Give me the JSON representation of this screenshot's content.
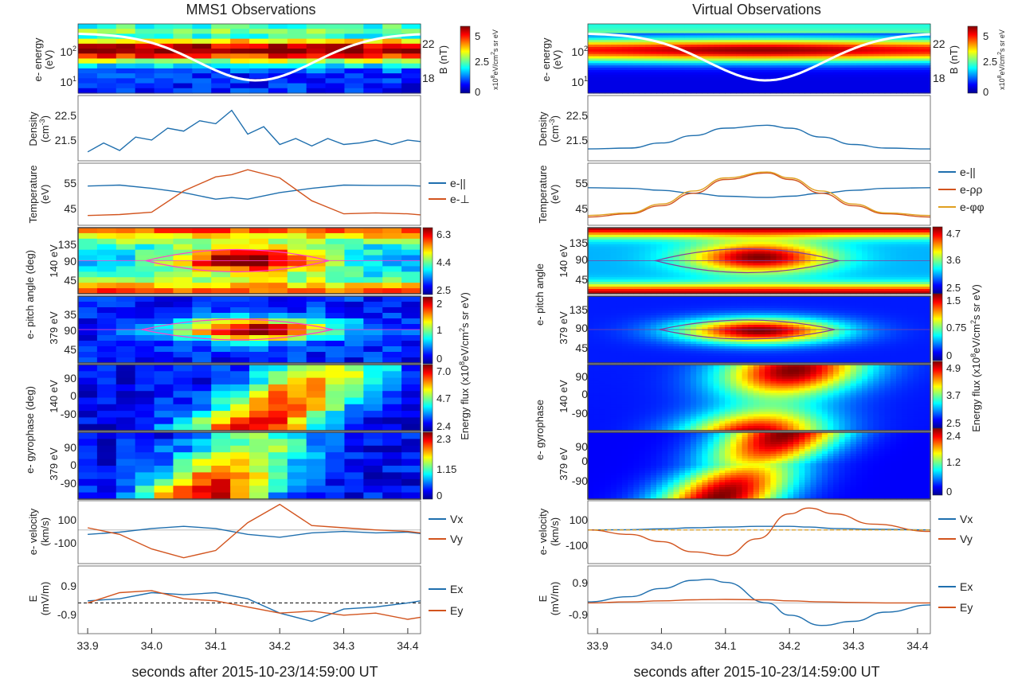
{
  "titles": {
    "left": "MMS1 Observations",
    "right": "Virtual Observations"
  },
  "xaxis": {
    "ticks": [
      "33.9",
      "34.0",
      "34.1",
      "34.2",
      "34.3",
      "34.4"
    ],
    "tick_values": [
      33.9,
      34.0,
      34.1,
      34.2,
      34.3,
      34.4
    ],
    "range": [
      33.885,
      34.42
    ],
    "label": "seconds after 2015-10-23/14:59:00 UT"
  },
  "labels": {
    "energy_l1": "e- energy",
    "energy_l2": "(eV)",
    "e_tick_hi": "10",
    "e_tick_hi_exp": "2",
    "e_tick_lo": "10",
    "e_tick_lo_exp": "1",
    "b_label": "B (nT)",
    "b_tick_hi": "22",
    "b_tick_lo": "18",
    "flux_unit_main": "x10",
    "flux_unit_exp": "8",
    "flux_unit_tail": "eV/cm",
    "flux_unit_exp2": "2",
    "flux_unit_end": "s sr eV",
    "density_l1": "Density",
    "density_l2": "(cm",
    "density_exp": "-3",
    "density_close": ")",
    "temperature_l1": "Temperature",
    "temperature_l2": "(eV)",
    "pitch_group": "e- pitch angle (deg)",
    "pitch_group_right": "e- pitch angle",
    "energy140": "140 eV",
    "energy379": "379 eV",
    "gyro_group": "e- gyrophase (deg)",
    "gyro_group_right": "e- gyrophase",
    "energy_flux_label": "Energy flux (x10",
    "energy_flux_exp": "8",
    "energy_flux_tail": "eV/cm",
    "energy_flux_exp2": "2",
    "energy_flux_end": "s sr eV)",
    "velocity_l1": "e- velocity",
    "velocity_l2": "(km/s)",
    "efield_l1": "E",
    "efield_l2": "(mV/m)"
  },
  "legend": {
    "temp_par": "e-||",
    "temp_perp": "e-⊥",
    "temp_rr": "e-ρρ",
    "temp_ff": "e-φφ",
    "vx": "Vx",
    "vy": "Vy",
    "ex": "Ex",
    "ey": "Ey"
  },
  "colors": {
    "blue": "#1f6fae",
    "orange": "#d2541e",
    "yellow": "#e0a020",
    "white": "#ffffff",
    "magenta": "#ff3fd0"
  },
  "ticks": {
    "density": [
      "22.5",
      "21.5"
    ],
    "temperature": [
      "55",
      "45"
    ],
    "pitch": [
      "135",
      "90",
      "45"
    ],
    "pitch379_left": [
      "35",
      "90",
      "45"
    ],
    "gyro": [
      "90",
      "0",
      "-90"
    ],
    "velocity": [
      "100",
      "-100"
    ],
    "efield": [
      "0.9",
      "-0.9"
    ]
  },
  "colorbars": {
    "left_energy": [
      "5",
      "2.5",
      "0"
    ],
    "left_p140": [
      "6.3",
      "4.4",
      "2.5"
    ],
    "left_p379": [
      "2",
      "1",
      "0"
    ],
    "left_g140": [
      "7.0",
      "4.7",
      "2.4"
    ],
    "left_g379": [
      "2.3",
      "1.15",
      "0"
    ],
    "right_energy": [
      "5",
      "2.5",
      "0"
    ],
    "right_p140": [
      "4.7",
      "3.6",
      "2.5"
    ],
    "right_p379": [
      "1.5",
      "0.75",
      "0"
    ],
    "right_g140": [
      "4.9",
      "3.7",
      "2.5"
    ],
    "right_g379": [
      "2.4",
      "1.2",
      "0"
    ]
  },
  "chart_data": [
    {
      "type": "line",
      "panel": "MMS1 density",
      "ylabel": "Density (cm-3)",
      "ylim": [
        21.0,
        23.2
      ],
      "x": [
        33.9,
        33.925,
        33.95,
        33.975,
        34.0,
        34.025,
        34.05,
        34.075,
        34.1,
        34.125,
        34.15,
        34.175,
        34.2,
        34.225,
        34.25,
        34.275,
        34.3,
        34.325,
        34.35,
        34.375,
        34.4,
        34.42
      ],
      "series": [
        {
          "values": [
            21.3,
            21.6,
            21.35,
            21.8,
            21.7,
            22.1,
            22.0,
            22.35,
            22.25,
            22.7,
            21.9,
            22.15,
            21.55,
            21.75,
            21.5,
            21.75,
            21.55,
            21.6,
            21.7,
            21.55,
            21.7,
            21.65
          ]
        }
      ]
    },
    {
      "type": "line",
      "panel": "MMS1 temperature",
      "ylabel": "Temperature (eV)",
      "ylim": [
        41,
        60
      ],
      "x": [
        33.9,
        33.95,
        34.0,
        34.05,
        34.1,
        34.125,
        34.15,
        34.2,
        34.25,
        34.3,
        34.35,
        34.4,
        34.42
      ],
      "series": [
        {
          "name": "e-||",
          "values": [
            53,
            53.3,
            52.3,
            51,
            49,
            49.5,
            49,
            51,
            52.3,
            53.3,
            53.2,
            53.2,
            53
          ]
        },
        {
          "name": "e-⊥",
          "values": [
            44,
            44.3,
            45,
            51.5,
            55.8,
            56.5,
            58,
            55.5,
            48.5,
            44.5,
            44.8,
            44.5,
            44.2
          ]
        }
      ]
    },
    {
      "type": "line",
      "panel": "MMS1 velocity",
      "ylabel": "e- velocity (km/s)",
      "ylim": [
        -230,
        200
      ],
      "x": [
        33.9,
        33.95,
        34.0,
        34.05,
        34.1,
        34.15,
        34.2,
        34.25,
        34.3,
        34.35,
        34.4,
        34.42
      ],
      "series": [
        {
          "name": "Vx",
          "values": [
            -30,
            -15,
            10,
            25,
            10,
            -30,
            -50,
            -20,
            -10,
            -20,
            -15,
            -25
          ]
        },
        {
          "name": "Vy",
          "values": [
            15,
            -30,
            -130,
            -190,
            -140,
            50,
            175,
            30,
            15,
            0,
            -10,
            -20
          ]
        }
      ]
    },
    {
      "type": "line",
      "panel": "MMS1 E-field",
      "ylabel": "E (mV/m)",
      "ylim": [
        -1.5,
        1.8
      ],
      "x": [
        33.9,
        33.95,
        34.0,
        34.05,
        34.1,
        34.15,
        34.2,
        34.25,
        34.3,
        34.35,
        34.4,
        34.42
      ],
      "series": [
        {
          "name": "Ex",
          "values": [
            0.1,
            0.2,
            0.5,
            0.4,
            0.5,
            0.2,
            -0.5,
            -0.9,
            -0.3,
            -0.2,
            0.0,
            0.1
          ]
        },
        {
          "name": "Ey",
          "values": [
            0.0,
            0.5,
            0.6,
            0.2,
            0.1,
            -0.2,
            -0.5,
            -0.4,
            -0.6,
            -0.5,
            -0.8,
            -0.7
          ]
        }
      ]
    },
    {
      "type": "line",
      "panel": "Virtual density",
      "ylabel": "Density (cm-3)",
      "ylim": [
        21.0,
        23.2
      ],
      "x": [
        33.885,
        33.95,
        34.0,
        34.05,
        34.1,
        34.165,
        34.2,
        34.25,
        34.3,
        34.35,
        34.42
      ],
      "series": [
        {
          "values": [
            21.4,
            21.43,
            21.6,
            21.85,
            22.1,
            22.2,
            22.1,
            21.8,
            21.55,
            21.43,
            21.4
          ]
        }
      ]
    },
    {
      "type": "line",
      "panel": "Virtual temperature",
      "ylabel": "Temperature (eV)",
      "ylim": [
        41,
        60
      ],
      "x": [
        33.885,
        33.95,
        34.0,
        34.05,
        34.1,
        34.165,
        34.2,
        34.25,
        34.3,
        34.35,
        34.42
      ],
      "series": [
        {
          "name": "e-||",
          "values": [
            52.5,
            52.3,
            51.7,
            50.8,
            49.9,
            49.5,
            49.9,
            50.8,
            51.7,
            52.3,
            52.5
          ]
        },
        {
          "name": "e-ρρ",
          "values": [
            43.5,
            44.5,
            47,
            50.8,
            55,
            57,
            55,
            50.8,
            47,
            44.5,
            43.5
          ]
        },
        {
          "name": "e-φφ",
          "values": [
            44,
            44.8,
            47.5,
            51.5,
            55.5,
            57.3,
            55.5,
            51.5,
            47.5,
            44.8,
            44
          ]
        }
      ]
    },
    {
      "type": "line",
      "panel": "Virtual velocity",
      "ylabel": "e- velocity (km/s)",
      "ylim": [
        -230,
        200
      ],
      "x": [
        33.885,
        33.95,
        34.0,
        34.05,
        34.1,
        34.15,
        34.2,
        34.23,
        34.27,
        34.33,
        34.42
      ],
      "series": [
        {
          "name": "Vx",
          "values": [
            0,
            2,
            8,
            15,
            20,
            25,
            25,
            20,
            10,
            5,
            0
          ]
        },
        {
          "name": "Vy",
          "values": [
            0,
            -30,
            -80,
            -150,
            -175,
            -60,
            110,
            150,
            110,
            40,
            -10
          ]
        }
      ]
    },
    {
      "type": "line",
      "panel": "Virtual E-field",
      "ylabel": "E (mV/m)",
      "ylim": [
        -1.5,
        1.8
      ],
      "x": [
        33.885,
        33.95,
        34.0,
        34.05,
        34.075,
        34.1,
        34.165,
        34.2,
        34.25,
        34.3,
        34.35,
        34.42
      ],
      "series": [
        {
          "name": "Ex",
          "values": [
            0.05,
            0.3,
            0.7,
            1.1,
            1.15,
            1.0,
            0.0,
            -0.6,
            -1.1,
            -0.9,
            -0.45,
            -0.1
          ]
        },
        {
          "name": "Ey",
          "values": [
            0.0,
            0.05,
            0.1,
            0.15,
            0.16,
            0.17,
            0.15,
            0.1,
            0.05,
            0.02,
            0.0,
            0.0
          ]
        }
      ]
    }
  ]
}
